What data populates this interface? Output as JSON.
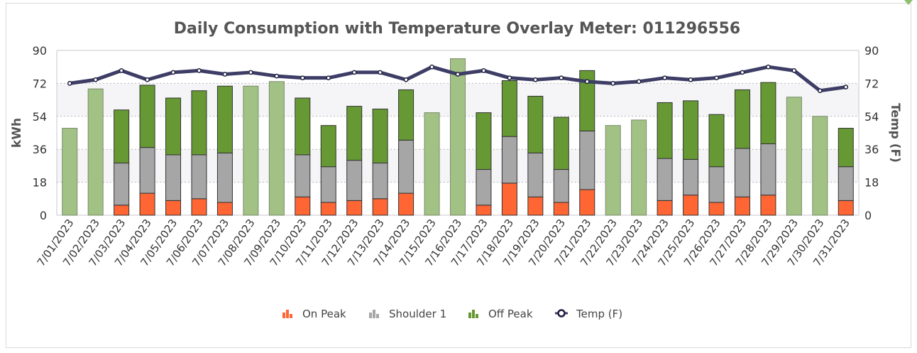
{
  "chart_data": {
    "type": "bar",
    "stacked": true,
    "title": "Daily Consumption with Temperature Overlay Meter: 011296556",
    "ylabel": "kWh",
    "y2label": "Temp (F)",
    "ylim": [
      0,
      90
    ],
    "y2lim": [
      0,
      90
    ],
    "yticks": [
      0,
      18,
      36,
      54,
      72,
      90
    ],
    "y2ticks": [
      0,
      18,
      36,
      54,
      72,
      90
    ],
    "grid": true,
    "legend_position": "bottom",
    "categories": [
      "7/01/2023",
      "7/02/2023",
      "7/03/2023",
      "7/04/2023",
      "7/05/2023",
      "7/06/2023",
      "7/07/2023",
      "7/08/2023",
      "7/09/2023",
      "7/10/2023",
      "7/11/2023",
      "7/12/2023",
      "7/13/2023",
      "7/14/2023",
      "7/15/2023",
      "7/16/2023",
      "7/17/2023",
      "7/18/2023",
      "7/19/2023",
      "7/20/2023",
      "7/21/2023",
      "7/22/2023",
      "7/23/2023",
      "7/24/2023",
      "7/25/2023",
      "7/26/2023",
      "7/27/2023",
      "7/28/2023",
      "7/29/2023",
      "7/30/2023",
      "7/31/2023"
    ],
    "series": [
      {
        "name": "On Peak",
        "kind": "bar",
        "color": "#ff6633",
        "values": [
          0,
          0,
          5.5,
          12,
          8,
          9,
          7,
          0,
          0,
          10,
          7,
          8,
          9,
          12,
          0,
          0,
          5.5,
          17.5,
          10,
          7,
          14,
          0,
          0,
          8,
          11,
          7,
          10,
          11,
          0,
          0,
          8
        ]
      },
      {
        "name": "Shoulder 1",
        "kind": "bar",
        "color": "#a6a6a6",
        "values": [
          0,
          0,
          23,
          25,
          25,
          24,
          27,
          0,
          0,
          23,
          19.5,
          22,
          19.5,
          29,
          0,
          0,
          19.5,
          25.5,
          24,
          18,
          32,
          0,
          0,
          23,
          19.5,
          19.5,
          26.5,
          28,
          0,
          0,
          18.5
        ]
      },
      {
        "name": "Off Peak",
        "kind": "bar",
        "color": "#669933",
        "weekend_color": "#a2c285",
        "values": [
          47.5,
          69,
          29,
          34,
          31,
          35,
          36.5,
          70.5,
          73,
          31,
          22.5,
          29.5,
          29.5,
          27.5,
          56,
          85.5,
          31,
          30.5,
          31,
          28.5,
          33,
          49,
          52,
          30.5,
          32,
          28.5,
          32,
          33.5,
          64.5,
          54,
          21
        ]
      },
      {
        "name": "Temp (F)",
        "kind": "line",
        "color": "#3d3d66",
        "axis": "right",
        "values": [
          72,
          74,
          79,
          74,
          78,
          79,
          77,
          78,
          76,
          75,
          75,
          78,
          78,
          74,
          81,
          77,
          79,
          75,
          74,
          75,
          73,
          72,
          73,
          75,
          74,
          75,
          78,
          81,
          79,
          68,
          70
        ]
      }
    ]
  },
  "legend": [
    {
      "label": "On Peak",
      "color": "#ff6633",
      "icon": "bar-chart-icon"
    },
    {
      "label": "Shoulder 1",
      "color": "#a6a6a6",
      "icon": "bar-chart-icon"
    },
    {
      "label": "Off Peak",
      "color": "#669933",
      "icon": "bar-chart-icon"
    },
    {
      "label": "Temp (F)",
      "color": "#3d3d66",
      "icon": "line-marker-icon"
    }
  ]
}
